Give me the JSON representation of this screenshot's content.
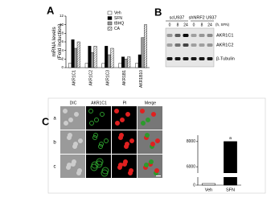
{
  "panel_labels": [
    "A",
    "B",
    "C"
  ],
  "chart_data": [
    {
      "type": "bar",
      "ylabel": "mRNA levels\n(Fold induction)",
      "categories": [
        "AKR1C1",
        "AKR1C2",
        "AKR1C3",
        "AKR1B1",
        "AKR1B10"
      ],
      "series": [
        {
          "name": "Veh",
          "color": "#ffffff",
          "values": [
            1,
            1,
            1,
            1,
            1
          ]
        },
        {
          "name": "SFN",
          "color": "#000000",
          "values": [
            6.5,
            5,
            5,
            2.5,
            3
          ]
        },
        {
          "name": "tBHQ",
          "color": "#999999",
          "values": [
            4.5,
            3.5,
            3,
            2,
            7
          ]
        },
        {
          "name": "CA",
          "color": "#555555",
          "values": [
            6,
            5,
            4.5,
            2.5,
            10
          ]
        }
      ],
      "ylim": [
        0,
        12
      ],
      "yticks": [
        0,
        2,
        4,
        6,
        8,
        10,
        12
      ],
      "legend": "top"
    },
    {
      "type": "bar",
      "categories": [
        "Veh",
        "SFN"
      ],
      "values": [
        1,
        8000
      ],
      "color": "#000000",
      "ylim": [
        0,
        8500
      ],
      "ybreak": [
        5,
        5500
      ],
      "yticks": [
        0,
        6000,
        8000
      ],
      "annotations": [
        "a"
      ]
    }
  ],
  "blot": {
    "groups": [
      "scU937",
      "shNRF2 U937"
    ],
    "lanes": [
      "0",
      "8",
      "24",
      "0",
      "8",
      "24"
    ],
    "time_label": "(h, SFN)",
    "rows": [
      "AKR1C1",
      "AKR1C2",
      "β-Tubulin"
    ]
  },
  "microscopy": {
    "columns": [
      "DIC",
      "AKR1C1",
      "PI",
      "Merge"
    ],
    "rows": [
      "a",
      "b",
      "c"
    ]
  }
}
